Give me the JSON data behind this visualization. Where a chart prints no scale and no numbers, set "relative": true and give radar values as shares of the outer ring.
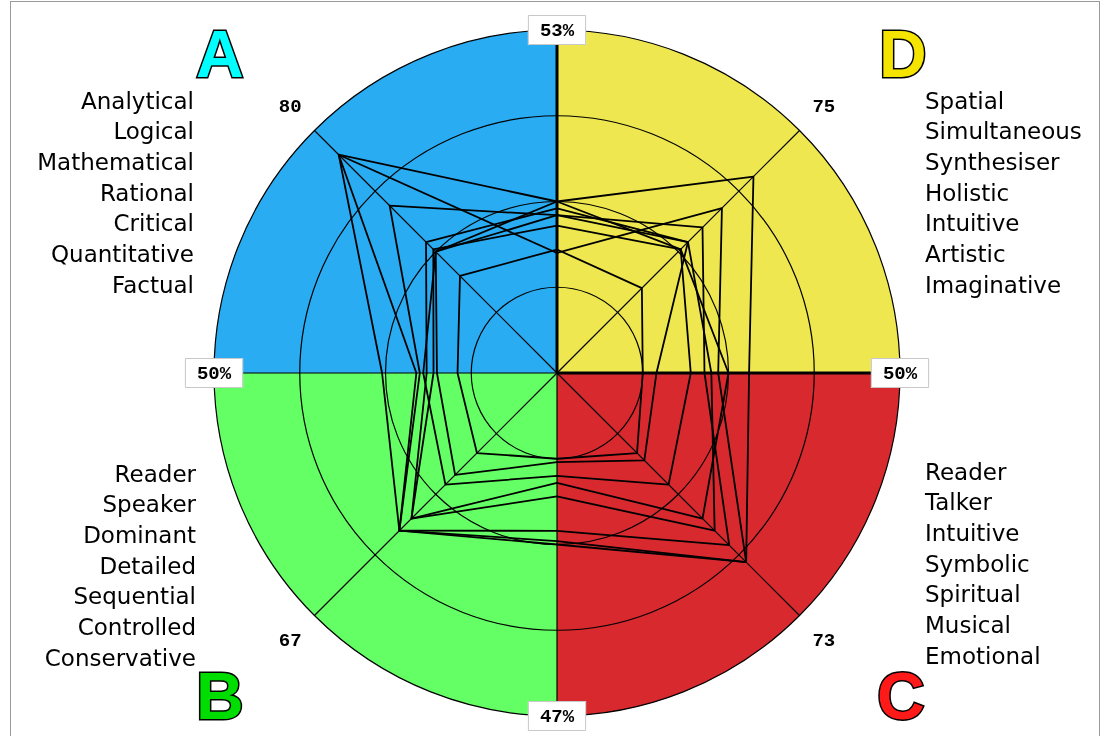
{
  "chart_data": {
    "type": "radar",
    "relative": true,
    "categories": [
      "53%",
      "75",
      "50%",
      "73",
      "47%",
      "67",
      "50%",
      "80"
    ],
    "series": [
      {
        "color": "#000000",
        "values": [
          0.5,
          0.81,
          0.56,
          0.78,
          0.5,
          0.65,
          0.51,
          0.9
        ]
      },
      {
        "color": "#000000",
        "values": [
          0.35,
          0.68,
          0.47,
          0.78,
          0.49,
          0.65,
          0.41,
          0.9
        ]
      },
      {
        "color": "#000000",
        "values": [
          0.46,
          0.6,
          0.43,
          0.71,
          0.46,
          0.65,
          0.4,
          0.69
        ]
      },
      {
        "color": "#000000",
        "values": [
          0.48,
          0.54,
          0.45,
          0.65,
          0.36,
          0.6,
          0.38,
          0.54
        ]
      },
      {
        "color": "#000000",
        "values": [
          0.43,
          0.51,
          0.5,
          0.6,
          0.32,
          0.6,
          0.36,
          0.51
        ]
      },
      {
        "color": "#000000",
        "values": [
          0.5,
          0.51,
          0.39,
          0.46,
          0.3,
          0.46,
          0.39,
          0.5
        ]
      },
      {
        "color": "#000000",
        "values": [
          0.46,
          0.54,
          0.29,
          0.36,
          0.26,
          0.42,
          0.35,
          0.5
        ]
      },
      {
        "color": "#000000",
        "values": [
          0.36,
          0.35,
          0.25,
          0.33,
          0.25,
          0.33,
          0.29,
          0.4
        ]
      }
    ],
    "grid": true,
    "legend": false,
    "marker": "none",
    "annotations": [
      "A",
      "Analytical\nLogical\nMathematical\nRational\nCritical\nQuantitative\nFactual",
      "D",
      "Spatial\nSimultaneous\nSynthesiser\nHolistic\nIntuitive\nArtistic\nImaginative",
      "Reader\nSpeaker\nDominant\nDetailed\nSequential\nControlled\nConservative",
      "B",
      "Reader\nTalker\nIntuitive\nSymbolic\nSpiritual\nMusical\nEmotional",
      "C"
    ]
  }
}
